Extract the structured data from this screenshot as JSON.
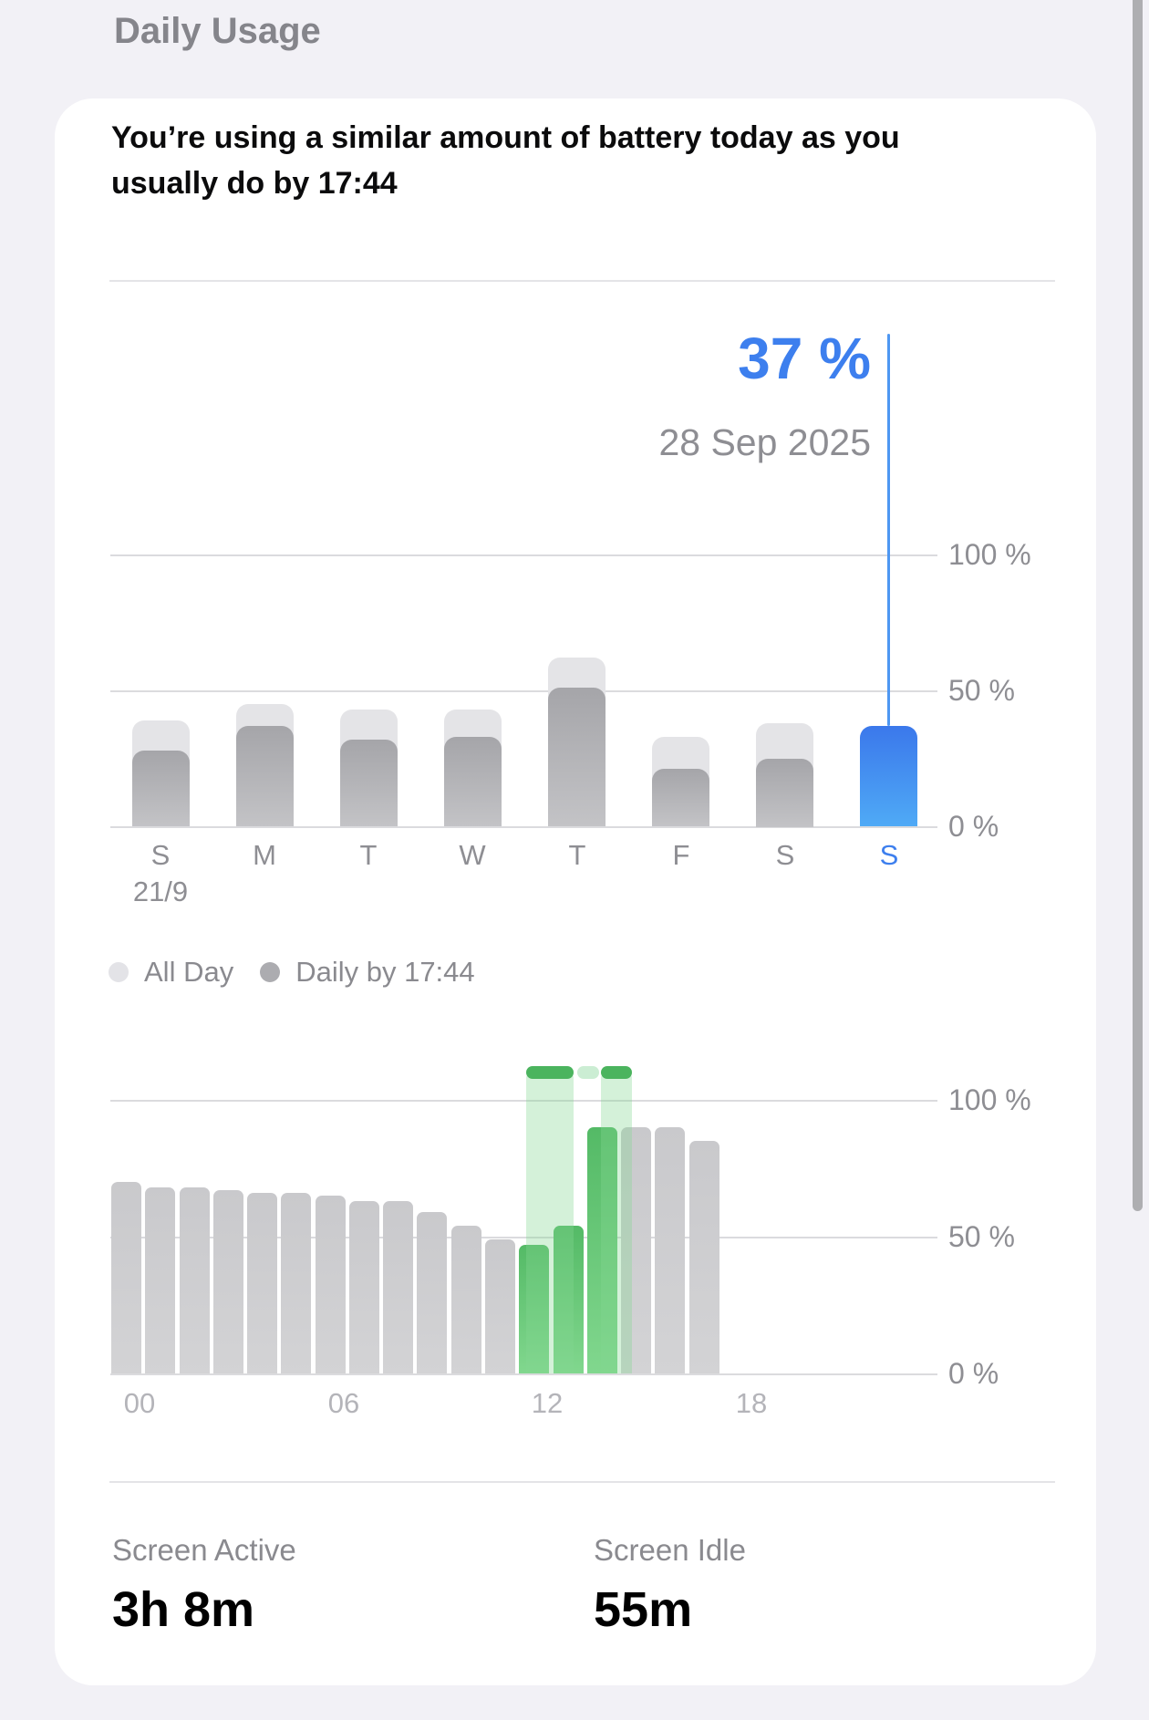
{
  "page_title": "Daily Usage",
  "colors": {
    "page_bg": "#F2F1F6",
    "card_bg": "#FFFFFF",
    "title": "#85858B",
    "divider": "#E4E4E7",
    "accent_blue": "#3D7FEE",
    "blue_line": "#4E97F2",
    "blue_bar_top": "#3B78EB",
    "blue_bar_bottom": "#4FAAF6",
    "date": "#8E8E93",
    "axis_label": "#8E8E93",
    "hour_label": "#B4B4B9",
    "gridline": "#DBDBDE",
    "allday_bar": "#E4E4E7",
    "daily_bar_top": "#A5A5A9",
    "daily_bar_bottom": "#C3C3C6",
    "gray_bar_top": "#C9C9CC",
    "gray_bar_bottom": "#D3D3D5",
    "green_bar_top": "#54BA66",
    "green_bar_bottom": "#81D78E",
    "green_band": "rgba(133,214,147,0.35)",
    "green_cap": "#4BB45E",
    "green_cap_pale": "#CBEDD3",
    "legend_text": "#8A8A8F",
    "legend_dot_allday": "#E3E3E7",
    "legend_dot_daily": "#ACACB0",
    "stat_label": "#8A8A8F",
    "scrollbar": "#AEAEB1"
  },
  "card": {
    "headline": "You’re using a similar amount of battery today as you usually do by 17:44",
    "callout": {
      "value": "37 %",
      "date": "28 Sep 2025"
    },
    "legend": [
      {
        "label": "All Day"
      },
      {
        "label": "Daily by 17:44"
      }
    ],
    "stats": [
      {
        "label": "Screen Active",
        "value": "3h 8m"
      },
      {
        "label": "Screen Idle",
        "value": "55m"
      }
    ]
  },
  "chart_data": [
    {
      "type": "bar",
      "title": "Battery usage by day, last 8 days (%)",
      "categories": [
        "S",
        "M",
        "T",
        "W",
        "T",
        "F",
        "S",
        "S"
      ],
      "first_category_date": "21/9",
      "series": [
        {
          "name": "All Day",
          "values": [
            39,
            45,
            43,
            43,
            62,
            33,
            38,
            null
          ]
        },
        {
          "name": "Daily by 17:44",
          "values": [
            28,
            37,
            32,
            33,
            51,
            21,
            25,
            37
          ]
        }
      ],
      "selected": {
        "index": 7,
        "value": 37,
        "label": "37 %",
        "date": "28 Sep 2025"
      },
      "yticks": [
        {
          "label": "100 %",
          "value": 100
        },
        {
          "label": "50 %",
          "value": 50
        },
        {
          "label": "0 %",
          "value": 0
        }
      ],
      "ylim": [
        0,
        100
      ],
      "grid": "horizontal",
      "legend_position": "bottom-left"
    },
    {
      "type": "bar",
      "title": "Battery level by hour, today (%)",
      "values": [
        70,
        68,
        68,
        67,
        66,
        66,
        65,
        63,
        63,
        59,
        54,
        49,
        47,
        54,
        90,
        90,
        90,
        85
      ],
      "green_indices": [
        12,
        13,
        14
      ],
      "charging_periods": [
        {
          "start_hour": 12.2,
          "end_hour": 13.6,
          "state": "charging"
        },
        {
          "start_hour": 13.7,
          "end_hour": 14.35,
          "state": "paused"
        },
        {
          "start_hour": 14.4,
          "end_hour": 15.3,
          "state": "charging"
        }
      ],
      "x_labels": [
        {
          "label": "00",
          "hour": 0
        },
        {
          "label": "06",
          "hour": 6
        },
        {
          "label": "12",
          "hour": 12
        },
        {
          "label": "18",
          "hour": 18
        }
      ],
      "yticks": [
        {
          "label": "100 %",
          "value": 100
        },
        {
          "label": "50 %",
          "value": 50
        },
        {
          "label": "0 %",
          "value": 0
        }
      ],
      "ylim": [
        0,
        100
      ],
      "grid": "horizontal"
    }
  ]
}
